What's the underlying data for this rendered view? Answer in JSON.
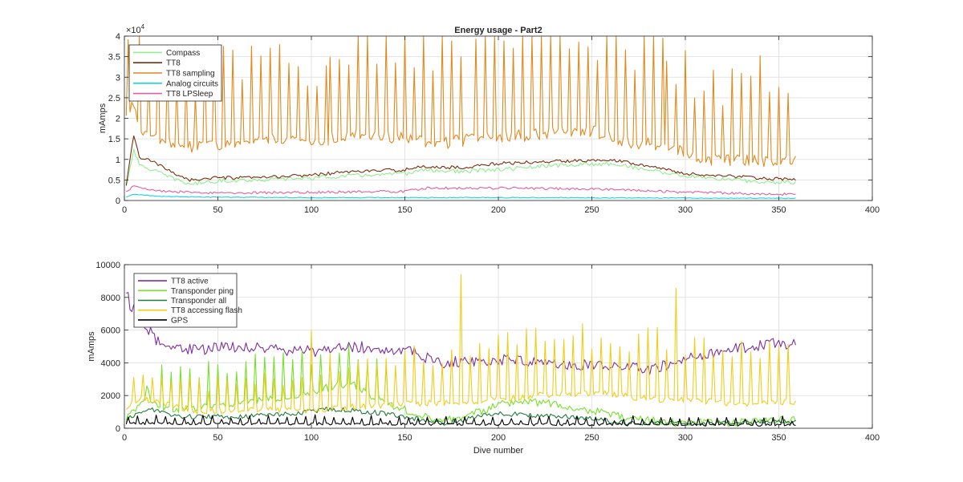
{
  "chart_data": [
    {
      "type": "line",
      "title": "Energy usage - Part2",
      "xlabel": "",
      "ylabel": "mAmps",
      "exponent_label": "×10",
      "exponent_power": "4",
      "xlim": [
        0,
        400
      ],
      "ylim": [
        0,
        40000
      ],
      "xticks": [
        0,
        50,
        100,
        150,
        200,
        250,
        300,
        350,
        400
      ],
      "yticks": [
        0,
        5000,
        10000,
        15000,
        20000,
        25000,
        30000,
        35000,
        40000
      ],
      "ytick_labels": [
        "0",
        "0.5",
        "1",
        "1.5",
        "2",
        "2.5",
        "3",
        "3.5",
        "4"
      ],
      "grid": true,
      "legend_position": "top-left",
      "dives": 359,
      "series": [
        {
          "name": "Compass",
          "color": "#90ee90",
          "base": [
            [
              1,
              3500
            ],
            [
              5,
              12500
            ],
            [
              8,
              8500
            ],
            [
              15,
              7500
            ],
            [
              25,
              5500
            ],
            [
              35,
              4000
            ],
            [
              50,
              4800
            ],
            [
              70,
              5000
            ],
            [
              100,
              5500
            ],
            [
              120,
              6000
            ],
            [
              150,
              6500
            ],
            [
              160,
              7500
            ],
            [
              180,
              7000
            ],
            [
              200,
              7500
            ],
            [
              230,
              8500
            ],
            [
              260,
              9000
            ],
            [
              280,
              7500
            ],
            [
              300,
              6000
            ],
            [
              340,
              4500
            ],
            [
              358,
              4500
            ]
          ],
          "noise": 500,
          "spikes": []
        },
        {
          "name": "TT8",
          "color": "#7a2e0e",
          "base": [
            [
              1,
              3500
            ],
            [
              5,
              16000
            ],
            [
              8,
              10500
            ],
            [
              15,
              9500
            ],
            [
              25,
              7000
            ],
            [
              35,
              5000
            ],
            [
              50,
              5500
            ],
            [
              70,
              5500
            ],
            [
              100,
              6200
            ],
            [
              120,
              7000
            ],
            [
              150,
              7500
            ],
            [
              160,
              8200
            ],
            [
              180,
              8000
            ],
            [
              200,
              9000
            ],
            [
              230,
              9500
            ],
            [
              260,
              10000
            ],
            [
              280,
              8500
            ],
            [
              300,
              6500
            ],
            [
              340,
              5500
            ],
            [
              358,
              5000
            ]
          ],
          "noise": 400,
          "spikes": []
        },
        {
          "name": "TT8 sampling",
          "color": "#e08a1e",
          "base": [
            [
              1,
              20000
            ],
            [
              5,
              24000
            ],
            [
              8,
              17000
            ],
            [
              20,
              14000
            ],
            [
              40,
              13000
            ],
            [
              60,
              14000
            ],
            [
              80,
              15500
            ],
            [
              100,
              14000
            ],
            [
              120,
              16000
            ],
            [
              150,
              15000
            ],
            [
              170,
              14000
            ],
            [
              200,
              15500
            ],
            [
              220,
              16000
            ],
            [
              250,
              17000
            ],
            [
              270,
              14000
            ],
            [
              290,
              13500
            ],
            [
              310,
              10000
            ],
            [
              330,
              9500
            ],
            [
              358,
              10000
            ]
          ],
          "noise": 1500,
          "spikes": [
            [
              2,
              5,
              26000
            ],
            [
              8,
              110,
              24000
            ],
            [
              110,
              180,
              30000
            ],
            [
              188,
              290,
              30000
            ],
            [
              290,
              358,
              26000
            ]
          ]
        },
        {
          "name": "Analog circuits",
          "color": "#19d7d7",
          "base": [
            [
              1,
              800
            ],
            [
              5,
              1500
            ],
            [
              20,
              1000
            ],
            [
              50,
              800
            ],
            [
              100,
              700
            ],
            [
              200,
              700
            ],
            [
              300,
              600
            ],
            [
              358,
              500
            ]
          ],
          "noise": 100,
          "spikes": []
        },
        {
          "name": "TT8 LPSleep",
          "color": "#e060a0",
          "base": [
            [
              1,
              2000
            ],
            [
              5,
              3800
            ],
            [
              15,
              2500
            ],
            [
              40,
              1800
            ],
            [
              70,
              1900
            ],
            [
              100,
              2000
            ],
            [
              150,
              2200
            ],
            [
              160,
              3000
            ],
            [
              200,
              3000
            ],
            [
              250,
              2800
            ],
            [
              300,
              2000
            ],
            [
              358,
              1500
            ]
          ],
          "noise": 300,
          "spikes": []
        }
      ]
    },
    {
      "type": "line",
      "title": "",
      "xlabel": "Dive number",
      "ylabel": "mAmps",
      "xlim": [
        0,
        400
      ],
      "ylim": [
        0,
        10000
      ],
      "xticks": [
        0,
        50,
        100,
        150,
        200,
        250,
        300,
        350,
        400
      ],
      "yticks": [
        0,
        2000,
        4000,
        6000,
        8000,
        10000
      ],
      "ytick_labels": [
        "0",
        "2000",
        "4000",
        "6000",
        "8000",
        "10000"
      ],
      "grid": true,
      "legend_position": "top-left",
      "dives": 359,
      "series": [
        {
          "name": "TT8 active",
          "color": "#7e2fa0",
          "base": [
            [
              1,
              8600
            ],
            [
              3,
              7500
            ],
            [
              10,
              6500
            ],
            [
              20,
              5000
            ],
            [
              40,
              4800
            ],
            [
              60,
              5000
            ],
            [
              80,
              4800
            ],
            [
              100,
              4700
            ],
            [
              120,
              5000
            ],
            [
              150,
              4800
            ],
            [
              170,
              4000
            ],
            [
              200,
              4200
            ],
            [
              230,
              4000
            ],
            [
              260,
              3800
            ],
            [
              280,
              3600
            ],
            [
              300,
              4200
            ],
            [
              320,
              4700
            ],
            [
              340,
              5100
            ],
            [
              358,
              5200
            ]
          ],
          "noise": 350,
          "spikes": []
        },
        {
          "name": "Transponder ping",
          "color": "#77e02a",
          "base": [
            [
              1,
              700
            ],
            [
              10,
              1500
            ],
            [
              12,
              2500
            ],
            [
              15,
              1400
            ],
            [
              30,
              1100
            ],
            [
              60,
              1500
            ],
            [
              90,
              2000
            ],
            [
              110,
              2500
            ],
            [
              120,
              2800
            ],
            [
              140,
              1500
            ],
            [
              170,
              400
            ],
            [
              190,
              1000
            ],
            [
              200,
              1500
            ],
            [
              220,
              1600
            ],
            [
              240,
              1300
            ],
            [
              270,
              600
            ],
            [
              300,
              300
            ],
            [
              358,
              500
            ]
          ],
          "noise": 250,
          "spikes": [
            [
              20,
              140,
              2800
            ]
          ]
        },
        {
          "name": "Transponder all",
          "color": "#217a3a",
          "base": [
            [
              1,
              500
            ],
            [
              12,
              1200
            ],
            [
              30,
              700
            ],
            [
              60,
              700
            ],
            [
              90,
              900
            ],
            [
              110,
              1200
            ],
            [
              140,
              900
            ],
            [
              170,
              300
            ],
            [
              200,
              900
            ],
            [
              240,
              700
            ],
            [
              270,
              300
            ],
            [
              358,
              400
            ]
          ],
          "noise": 150,
          "spikes": []
        },
        {
          "name": "TT8 accessing flash",
          "color": "#f2cc1a",
          "base": [
            [
              1,
              1300
            ],
            [
              10,
              1800
            ],
            [
              40,
              1000
            ],
            [
              70,
              1200
            ],
            [
              100,
              1100
            ],
            [
              120,
              1300
            ],
            [
              150,
              1500
            ],
            [
              180,
              1600
            ],
            [
              200,
              1800
            ],
            [
              230,
              2100
            ],
            [
              260,
              2100
            ],
            [
              280,
              1800
            ],
            [
              300,
              1700
            ],
            [
              330,
              1500
            ],
            [
              358,
              1600
            ]
          ],
          "noise": 200,
          "spikes": [
            [
              5,
              100,
              2000
            ],
            [
              100,
              180,
              3500
            ],
            [
              180,
              295,
              4500
            ],
            [
              295,
              358,
              4000
            ]
          ]
        },
        {
          "name": "GPS",
          "color": "#000000",
          "base": [
            [
              1,
              300
            ],
            [
              358,
              200
            ]
          ],
          "noise": 80,
          "spikes": [
            [
              2,
              358,
              500
            ]
          ]
        }
      ]
    }
  ]
}
